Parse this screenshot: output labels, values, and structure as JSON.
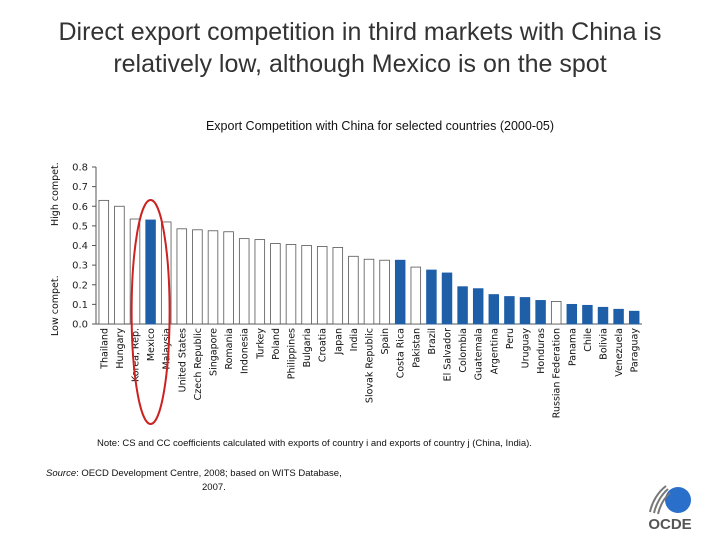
{
  "slide": {
    "headline": "Direct export competition in third markets with China is\nrelatively low, although Mexico is on the spot",
    "note": "Note: CS and CC coefficients calculated with exports of country i and exports of country j (China, India).",
    "source_label": "Source",
    "source_text": ": OECD Development Centre, 2008; based on WITS Database,",
    "source_year": "2007.",
    "logo_text": "OCDE"
  },
  "chart_data": {
    "type": "bar",
    "title": "Export Competition with China for selected countries (2000-05)",
    "ylabel_high": "High compet.",
    "ylabel_low": "Low compet.",
    "ylim": [
      0,
      0.8
    ],
    "yticks": [
      "0.0",
      "0.1",
      "0.2",
      "0.3",
      "0.4",
      "0.5",
      "0.6",
      "0.7",
      "0.8"
    ],
    "grid": false,
    "highlight_color": "#1f5fa8",
    "default_color": "#ffffff",
    "circle_color": "#cc2222",
    "circled_category": "Mexico",
    "categories": [
      "Thailand",
      "Hungary",
      "Korea, Rep.",
      "Mexico",
      "Malaysia",
      "United States",
      "Czech Republic",
      "Singapore",
      "Romania",
      "Indonesia",
      "Turkey",
      "Poland",
      "Philippines",
      "Bulgaria",
      "Croatia",
      "Japan",
      "India",
      "Slovak Republic",
      "Spain",
      "Costa Rica",
      "Pakistan",
      "Brazil",
      "El Salvador",
      "Colombia",
      "Guatemala",
      "Argentina",
      "Peru",
      "Uruguay",
      "Honduras",
      "Russian Federation",
      "Panama",
      "Chile",
      "Bolivia",
      "Venezuela",
      "Paraguay"
    ],
    "values": [
      0.63,
      0.6,
      0.535,
      0.53,
      0.52,
      0.485,
      0.48,
      0.475,
      0.47,
      0.435,
      0.43,
      0.41,
      0.405,
      0.4,
      0.395,
      0.39,
      0.345,
      0.33,
      0.325,
      0.325,
      0.29,
      0.275,
      0.26,
      0.19,
      0.18,
      0.15,
      0.14,
      0.135,
      0.12,
      0.115,
      0.1,
      0.095,
      0.085,
      0.075,
      0.065
    ],
    "highlighted": [
      false,
      false,
      false,
      true,
      false,
      false,
      false,
      false,
      false,
      false,
      false,
      false,
      false,
      false,
      false,
      false,
      false,
      false,
      false,
      true,
      false,
      true,
      true,
      true,
      true,
      true,
      true,
      true,
      true,
      false,
      true,
      true,
      true,
      true,
      true
    ]
  }
}
